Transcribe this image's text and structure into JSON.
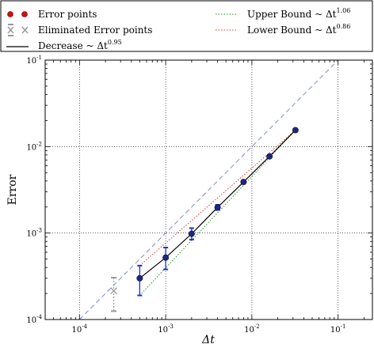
{
  "chart_data": {
    "type": "scatter",
    "xlabel": "Δt",
    "ylabel": "Error",
    "xscale": "log",
    "yscale": "log",
    "xlim": [
      4e-05,
      0.25
    ],
    "ylim": [
      0.0001,
      0.1
    ],
    "grid": true,
    "legend_placement": "top (above plot, two columns)",
    "x_ticks": [
      {
        "value": 0.0001,
        "base": "10",
        "exp": "-4"
      },
      {
        "value": 0.001,
        "base": "10",
        "exp": "-3"
      },
      {
        "value": 0.01,
        "base": "10",
        "exp": "-2"
      },
      {
        "value": 0.1,
        "base": "10",
        "exp": "-1"
      }
    ],
    "y_ticks": [
      {
        "value": 0.0001,
        "base": "10",
        "exp": "-4"
      },
      {
        "value": 0.001,
        "base": "10",
        "exp": "-3"
      },
      {
        "value": 0.01,
        "base": "10",
        "exp": "-2"
      },
      {
        "value": 0.1,
        "base": "10",
        "exp": "-1"
      }
    ],
    "legend": [
      {
        "key": "error_points",
        "text": "Error points",
        "exp": ""
      },
      {
        "key": "eliminated",
        "text": "Eliminated Error points",
        "exp": ""
      },
      {
        "key": "decrease",
        "text": "Decrease  ~ Δt",
        "exp": "0.95"
      },
      {
        "key": "upper",
        "text": "Upper Bound  ~ Δt",
        "exp": "1.06"
      },
      {
        "key": "lower",
        "text": "Lower Bound  ~ Δt",
        "exp": "0.86"
      }
    ],
    "error_points": [
      {
        "x": 0.0005,
        "y": 0.0003,
        "lo": 0.00019,
        "hi": 0.00042
      },
      {
        "x": 0.001,
        "y": 0.00052,
        "lo": 0.00038,
        "hi": 0.00068
      },
      {
        "x": 0.002,
        "y": 0.00098,
        "lo": 0.00084,
        "hi": 0.00114
      },
      {
        "x": 0.004,
        "y": 0.00198,
        "lo": 0.00185,
        "hi": 0.00212
      },
      {
        "x": 0.008,
        "y": 0.0039,
        "lo": 0.0038,
        "hi": 0.004
      },
      {
        "x": 0.016,
        "y": 0.0077,
        "lo": 0.0075,
        "hi": 0.0079
      },
      {
        "x": 0.032,
        "y": 0.0155,
        "lo": 0.0152,
        "hi": 0.0158
      }
    ],
    "eliminated_points": [
      {
        "x": 0.00025,
        "y": 0.000215,
        "lo": 0.000125,
        "hi": 0.000305
      }
    ],
    "decrease_line": {
      "x": [
        0.0005,
        0.032
      ],
      "y": [
        0.0003,
        0.0155
      ]
    },
    "upper_bound_line": {
      "x": [
        0.0005,
        0.032
      ],
      "y": [
        0.00019,
        0.0155
      ]
    },
    "lower_bound_line": {
      "x": [
        0.0005,
        0.032
      ],
      "y": [
        0.00042,
        0.0155
      ]
    },
    "reference_line": {
      "x": [
        0.0001,
        0.1
      ],
      "y": [
        0.0001,
        0.1
      ]
    },
    "colors": {
      "points": "#1a2a80",
      "errorbar": "#1f2fd6",
      "eliminated": "#999999",
      "decrease": "#000000",
      "upper": "#2e8b2e",
      "lower": "#e03a2a",
      "reference": "#8a8ff0",
      "legend_dot": "#cc1111"
    }
  }
}
